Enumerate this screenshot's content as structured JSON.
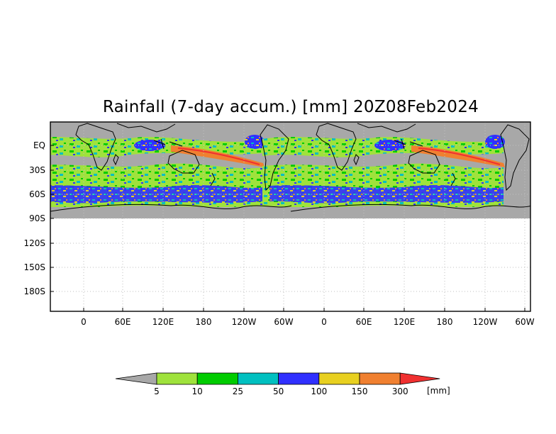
{
  "map": {
    "title": "Rainfall (7-day accum.) [mm] 20Z08Feb2024",
    "lat_labels": [
      "EQ",
      "30S",
      "60S",
      "90S",
      "120S",
      "150S",
      "180S"
    ],
    "lon_labels": [
      "0",
      "60E",
      "120E",
      "180",
      "120W",
      "60W",
      "0",
      "60E",
      "120E",
      "180",
      "120W",
      "60W"
    ],
    "grid": "dotted",
    "land_outline_color": "#000000",
    "no_data_color": "#a8a8a8"
  },
  "legend": {
    "unit": "[mm]",
    "thresholds": [
      "5",
      "10",
      "25",
      "50",
      "100",
      "150",
      "300"
    ],
    "colors": [
      "#a8a8a8",
      "#9fe23c",
      "#00cc00",
      "#00c0c0",
      "#3030ff",
      "#e8d020",
      "#f08030",
      "#f03030"
    ]
  }
}
